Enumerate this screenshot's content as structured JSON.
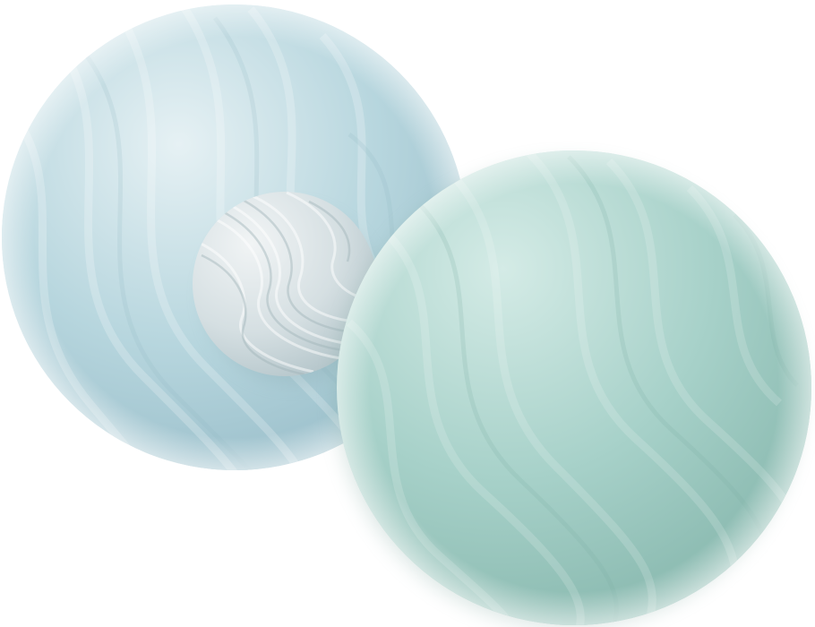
{
  "scene": {
    "subject": "three-marbled-spheres",
    "background_color": "#ffffff",
    "spheres": [
      {
        "id": "large-blue-sphere",
        "highlight_color": "#e6f1f4",
        "base_color": "#b7d6de",
        "shadow_color": "#97bcc8"
      },
      {
        "id": "small-grey-sphere",
        "highlight_color": "#f1f4f5",
        "base_color": "#d5dfe2",
        "shadow_color": "#b4c5ca"
      },
      {
        "id": "large-green-sphere",
        "highlight_color": "#d4ebe6",
        "base_color": "#a7d1c9",
        "shadow_color": "#88b8ae"
      }
    ]
  }
}
